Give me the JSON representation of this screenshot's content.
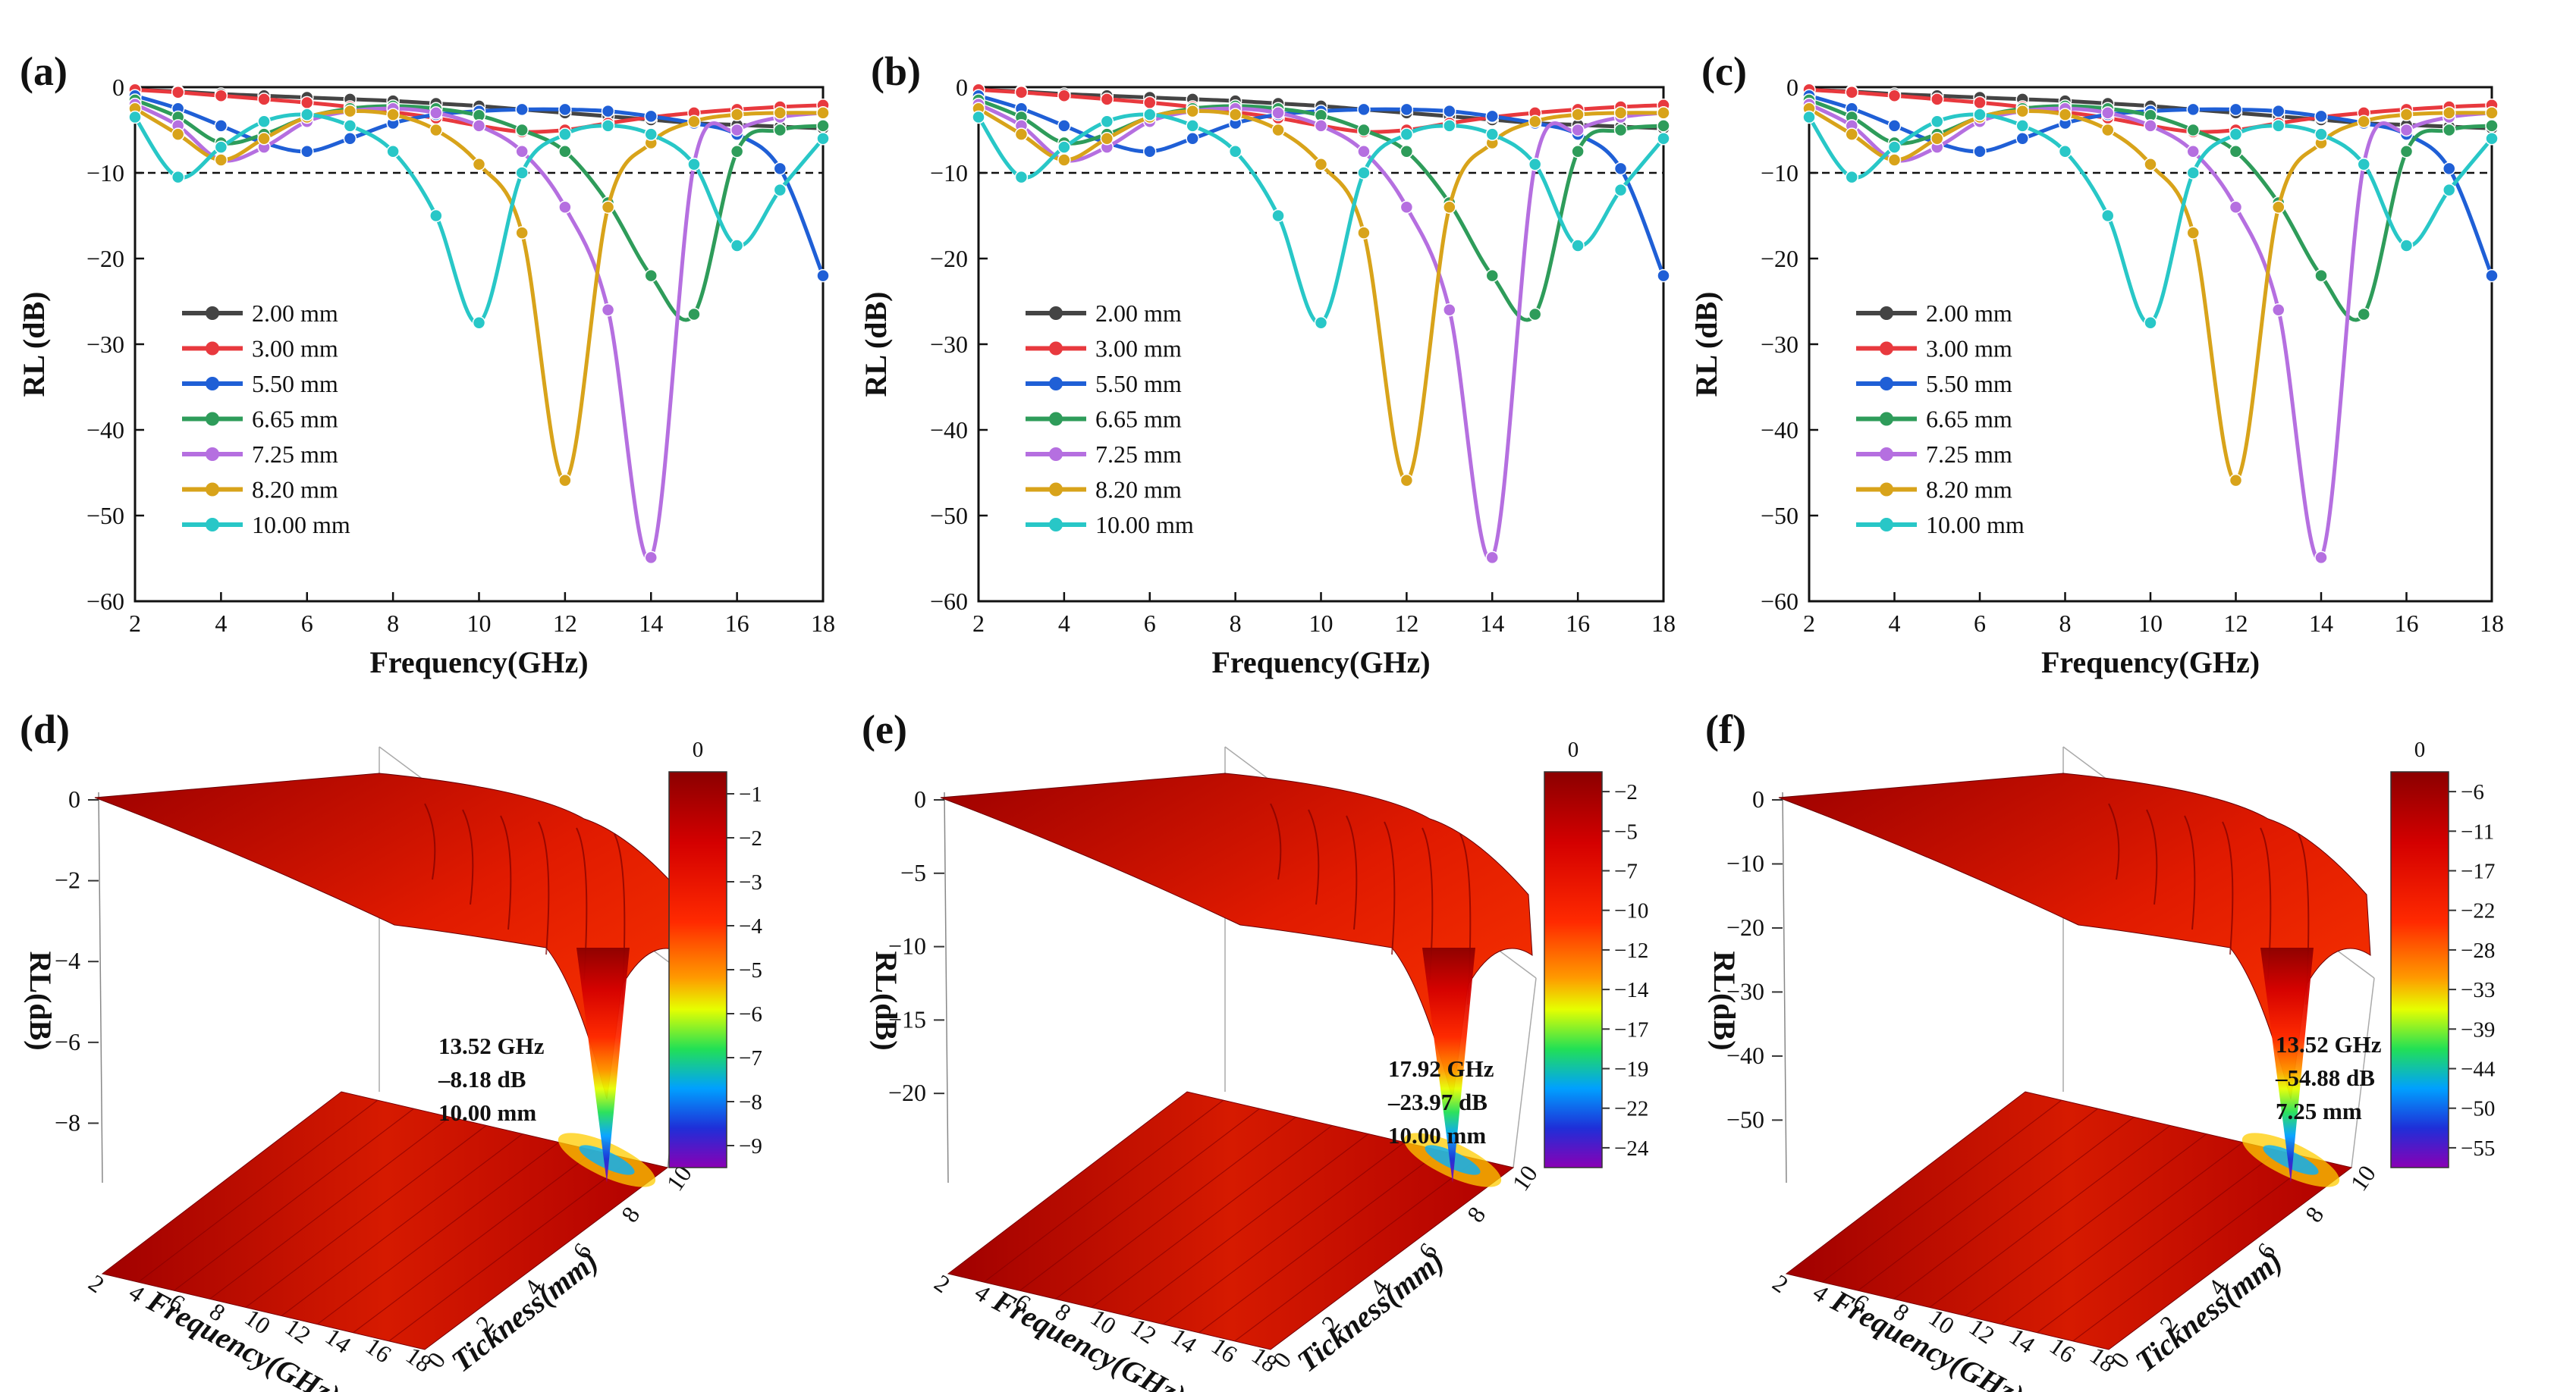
{
  "chart_data": [
    {
      "panel": "(a)",
      "type": "line",
      "xlabel": "Frequency(GHz)",
      "ylabel": "RL (dB)",
      "xlim": [
        2,
        18
      ],
      "ylim": [
        -60,
        0
      ],
      "xticks": [
        "2",
        "4",
        "6",
        "8",
        "10",
        "12",
        "14",
        "16",
        "18"
      ],
      "yticks": [
        "0",
        "-10",
        "-20",
        "-30",
        "-40",
        "-50",
        "-60"
      ],
      "reference_line": -10,
      "x": [
        2,
        3,
        4,
        5,
        6,
        7,
        8,
        9,
        10,
        11,
        12,
        13,
        14,
        15,
        16,
        17,
        18
      ],
      "series": [
        {
          "name": "2.00 mm",
          "color": "#444444",
          "values": [
            -0.3,
            -0.5,
            -0.8,
            -1.0,
            -1.2,
            -1.4,
            -1.6,
            -1.9,
            -2.2,
            -2.6,
            -3.0,
            -3.4,
            -3.8,
            -4.2,
            -4.4,
            -4.6,
            -4.8
          ]
        },
        {
          "name": "3.00 mm",
          "color": "#e8393e",
          "values": [
            -0.3,
            -0.6,
            -1.0,
            -1.4,
            -1.8,
            -2.3,
            -2.9,
            -3.6,
            -4.5,
            -5.2,
            -5.0,
            -4.2,
            -3.5,
            -3.0,
            -2.6,
            -2.3,
            -2.1
          ]
        },
        {
          "name": "5.50 mm",
          "color": "#1f5fd6",
          "values": [
            -1.0,
            -2.5,
            -4.5,
            -6.5,
            -7.5,
            -6.0,
            -4.2,
            -3.2,
            -2.8,
            -2.6,
            -2.6,
            -2.8,
            -3.4,
            -4.2,
            -5.5,
            -9.5,
            -22.0
          ]
        },
        {
          "name": "6.65 mm",
          "color": "#2e9c5a",
          "values": [
            -1.5,
            -3.5,
            -6.5,
            -5.5,
            -3.5,
            -2.5,
            -2.2,
            -2.5,
            -3.3,
            -5.0,
            -7.5,
            -13.5,
            -22.0,
            -26.5,
            -7.5,
            -5.0,
            -4.5
          ]
        },
        {
          "name": "7.25 mm",
          "color": "#b56fe0",
          "values": [
            -2.0,
            -4.5,
            -8.5,
            -7.0,
            -4.0,
            -2.8,
            -2.5,
            -3.0,
            -4.5,
            -7.5,
            -14.0,
            -26.0,
            -54.9,
            -9.0,
            -5.0,
            -3.5,
            -3.0
          ]
        },
        {
          "name": "8.20 mm",
          "color": "#d8a31a",
          "values": [
            -2.5,
            -5.5,
            -8.5,
            -6.0,
            -3.5,
            -2.8,
            -3.2,
            -5.0,
            -9.0,
            -17.0,
            -45.9,
            -14.0,
            -6.5,
            -4.0,
            -3.2,
            -3.0,
            -3.0
          ]
        },
        {
          "name": "10.00 mm",
          "color": "#28c7c7",
          "values": [
            -3.5,
            -10.5,
            -7.0,
            -4.0,
            -3.2,
            -4.5,
            -7.5,
            -15.0,
            -27.5,
            -10.0,
            -5.5,
            -4.5,
            -5.5,
            -9.0,
            -18.5,
            -12.0,
            -6.0
          ]
        }
      ]
    },
    {
      "panel": "(b)",
      "type": "line",
      "xlabel": "Frequency(GHz)",
      "ylabel": "RL (dB)",
      "xlim": [
        2,
        18
      ],
      "ylim": [
        -60,
        0
      ],
      "xticks": [
        "2",
        "4",
        "6",
        "8",
        "10",
        "12",
        "14",
        "16",
        "18"
      ],
      "yticks": [
        "0",
        "-10",
        "-20",
        "-30",
        "-40",
        "-50",
        "-60"
      ],
      "reference_line": -10,
      "x": [
        2,
        3,
        4,
        5,
        6,
        7,
        8,
        9,
        10,
        11,
        12,
        13,
        14,
        15,
        16,
        17,
        18
      ],
      "series": [
        {
          "name": "2.00 mm",
          "color": "#444444",
          "values": [
            -0.3,
            -0.5,
            -0.8,
            -1.0,
            -1.2,
            -1.4,
            -1.6,
            -1.9,
            -2.2,
            -2.6,
            -3.0,
            -3.4,
            -3.8,
            -4.2,
            -4.4,
            -4.6,
            -4.8
          ]
        },
        {
          "name": "3.00 mm",
          "color": "#e8393e",
          "values": [
            -0.3,
            -0.6,
            -1.0,
            -1.4,
            -1.8,
            -2.3,
            -2.9,
            -3.6,
            -4.5,
            -5.2,
            -5.0,
            -4.2,
            -3.5,
            -3.0,
            -2.6,
            -2.3,
            -2.1
          ]
        },
        {
          "name": "5.50 mm",
          "color": "#1f5fd6",
          "values": [
            -1.0,
            -2.5,
            -4.5,
            -6.5,
            -7.5,
            -6.0,
            -4.2,
            -3.2,
            -2.8,
            -2.6,
            -2.6,
            -2.8,
            -3.4,
            -4.2,
            -5.5,
            -9.5,
            -22.0
          ]
        },
        {
          "name": "6.65 mm",
          "color": "#2e9c5a",
          "values": [
            -1.5,
            -3.5,
            -6.5,
            -5.5,
            -3.5,
            -2.5,
            -2.2,
            -2.5,
            -3.3,
            -5.0,
            -7.5,
            -13.5,
            -22.0,
            -26.5,
            -7.5,
            -5.0,
            -4.5
          ]
        },
        {
          "name": "7.25 mm",
          "color": "#b56fe0",
          "values": [
            -2.0,
            -4.5,
            -8.5,
            -7.0,
            -4.0,
            -2.8,
            -2.5,
            -3.0,
            -4.5,
            -7.5,
            -14.0,
            -26.0,
            -54.9,
            -9.0,
            -5.0,
            -3.5,
            -3.0
          ]
        },
        {
          "name": "8.20 mm",
          "color": "#d8a31a",
          "values": [
            -2.5,
            -5.5,
            -8.5,
            -6.0,
            -3.5,
            -2.8,
            -3.2,
            -5.0,
            -9.0,
            -17.0,
            -45.9,
            -14.0,
            -6.5,
            -4.0,
            -3.2,
            -3.0,
            -3.0
          ]
        },
        {
          "name": "10.00 mm",
          "color": "#28c7c7",
          "values": [
            -3.5,
            -10.5,
            -7.0,
            -4.0,
            -3.2,
            -4.5,
            -7.5,
            -15.0,
            -27.5,
            -10.0,
            -5.5,
            -4.5,
            -5.5,
            -9.0,
            -18.5,
            -12.0,
            -6.0
          ]
        }
      ]
    },
    {
      "panel": "(c)",
      "type": "line",
      "xlabel": "Frequency(GHz)",
      "ylabel": "RL (dB)",
      "xlim": [
        2,
        18
      ],
      "ylim": [
        -60,
        0
      ],
      "xticks": [
        "2",
        "4",
        "6",
        "8",
        "10",
        "12",
        "14",
        "16",
        "18"
      ],
      "yticks": [
        "0",
        "-10",
        "-20",
        "-30",
        "-40",
        "-50",
        "-60"
      ],
      "reference_line": -10,
      "x": [
        2,
        3,
        4,
        5,
        6,
        7,
        8,
        9,
        10,
        11,
        12,
        13,
        14,
        15,
        16,
        17,
        18
      ],
      "series": [
        {
          "name": "2.00 mm",
          "color": "#444444",
          "values": [
            -0.3,
            -0.5,
            -0.8,
            -1.0,
            -1.2,
            -1.4,
            -1.6,
            -1.9,
            -2.2,
            -2.6,
            -3.0,
            -3.4,
            -3.8,
            -4.2,
            -4.4,
            -4.6,
            -4.8
          ]
        },
        {
          "name": "3.00 mm",
          "color": "#e8393e",
          "values": [
            -0.3,
            -0.6,
            -1.0,
            -1.4,
            -1.8,
            -2.3,
            -2.9,
            -3.6,
            -4.5,
            -5.2,
            -5.0,
            -4.2,
            -3.5,
            -3.0,
            -2.6,
            -2.3,
            -2.1
          ]
        },
        {
          "name": "5.50 mm",
          "color": "#1f5fd6",
          "values": [
            -1.0,
            -2.5,
            -4.5,
            -6.5,
            -7.5,
            -6.0,
            -4.2,
            -3.2,
            -2.8,
            -2.6,
            -2.6,
            -2.8,
            -3.4,
            -4.2,
            -5.5,
            -9.5,
            -22.0
          ]
        },
        {
          "name": "6.65 mm",
          "color": "#2e9c5a",
          "values": [
            -1.5,
            -3.5,
            -6.5,
            -5.5,
            -3.5,
            -2.5,
            -2.2,
            -2.5,
            -3.3,
            -5.0,
            -7.5,
            -13.5,
            -22.0,
            -26.5,
            -7.5,
            -5.0,
            -4.5
          ]
        },
        {
          "name": "7.25 mm",
          "color": "#b56fe0",
          "values": [
            -2.0,
            -4.5,
            -8.5,
            -7.0,
            -4.0,
            -2.8,
            -2.5,
            -3.0,
            -4.5,
            -7.5,
            -14.0,
            -26.0,
            -54.9,
            -9.0,
            -5.0,
            -3.5,
            -3.0
          ]
        },
        {
          "name": "8.20 mm",
          "color": "#d8a31a",
          "values": [
            -2.5,
            -5.5,
            -8.5,
            -6.0,
            -3.5,
            -2.8,
            -3.2,
            -5.0,
            -9.0,
            -17.0,
            -45.9,
            -14.0,
            -6.5,
            -4.0,
            -3.2,
            -3.0,
            -3.0
          ]
        },
        {
          "name": "10.00 mm",
          "color": "#28c7c7",
          "values": [
            -3.5,
            -10.5,
            -7.0,
            -4.0,
            -3.2,
            -4.5,
            -7.5,
            -15.0,
            -27.5,
            -10.0,
            -5.5,
            -4.5,
            -5.5,
            -9.0,
            -18.5,
            -12.0,
            -6.0
          ]
        }
      ]
    },
    {
      "panel": "(d)",
      "type": "surface3d",
      "zlabel": "RL (dB)",
      "xlabel": "Frequency(GHz)",
      "ylabel": "Tickness(mm)",
      "zticks": [
        "0",
        "-2",
        "-4",
        "-6",
        "-8"
      ],
      "zlim": [
        -9,
        0
      ],
      "freq_ticks": [
        "2",
        "4",
        "6",
        "8",
        "10",
        "12",
        "14",
        "16",
        "18"
      ],
      "thick_ticks": [
        "0",
        "2",
        "4",
        "6",
        "8",
        "10"
      ],
      "colorbar_ticks": [
        "0",
        "-1",
        "-2",
        "-3",
        "-4",
        "-5",
        "-6",
        "-7",
        "-8",
        "-9"
      ],
      "annotation": [
        "13.52 GHz",
        "–8.18 dB",
        "10.00 mm"
      ],
      "min_rl": -8.18
    },
    {
      "panel": "(e)",
      "type": "surface3d",
      "zlabel": "RL (dB)",
      "xlabel": "Frequency(GHz)",
      "ylabel": "Tickness(mm)",
      "zticks": [
        "0",
        "-5",
        "-10",
        "-15",
        "-20"
      ],
      "zlim": [
        -24,
        0
      ],
      "freq_ticks": [
        "2",
        "4",
        "6",
        "8",
        "10",
        "12",
        "14",
        "16",
        "18"
      ],
      "thick_ticks": [
        "0",
        "2",
        "4",
        "6",
        "8",
        "10"
      ],
      "colorbar_ticks": [
        "0",
        "-2",
        "-5",
        "-7",
        "-10",
        "-12",
        "-14",
        "-17",
        "-19",
        "-22",
        "-24"
      ],
      "annotation": [
        "17.92 GHz",
        "–23.97 dB",
        "10.00 mm"
      ],
      "min_rl": -23.97
    },
    {
      "panel": "(f)",
      "type": "surface3d",
      "zlabel": "RL (dB)",
      "xlabel": "Frequency(GHz)",
      "ylabel": "Tickness(mm)",
      "zticks": [
        "0",
        "-10",
        "-20",
        "-30",
        "-40",
        "-50"
      ],
      "zlim": [
        -55,
        0
      ],
      "freq_ticks": [
        "2",
        "4",
        "6",
        "8",
        "10",
        "12",
        "14",
        "16",
        "18"
      ],
      "thick_ticks": [
        "0",
        "2",
        "4",
        "6",
        "8",
        "10"
      ],
      "colorbar_ticks": [
        "0",
        "-6",
        "-11",
        "-17",
        "-22",
        "-28",
        "-33",
        "-39",
        "-44",
        "-50",
        "-55"
      ],
      "annotation": [
        "13.52 GHz",
        "–54.88 dB",
        "7.25 mm"
      ],
      "min_rl": -54.88
    }
  ]
}
